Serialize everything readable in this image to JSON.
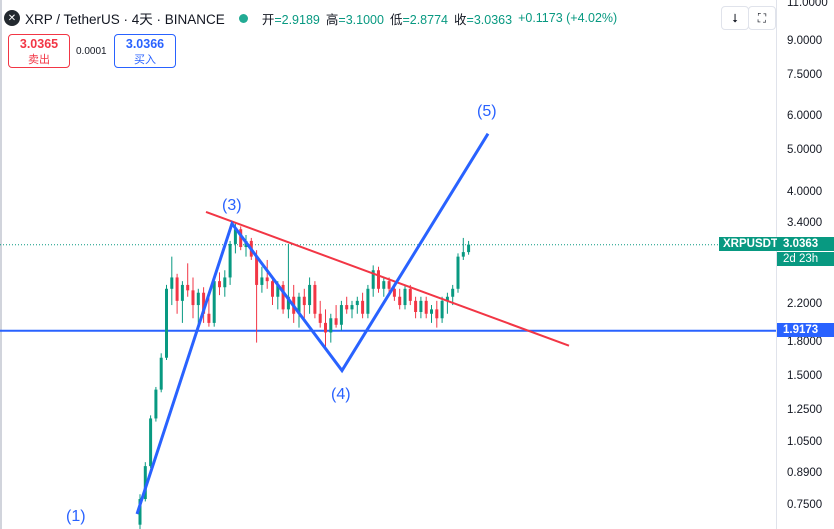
{
  "header": {
    "symbol_icon": "xrp-logo-icon",
    "title": "XRP / TetherUS · 4天 · BINANCE",
    "open_label": "开",
    "open": "=2.9189",
    "high_label": "高",
    "high": "=3.1000",
    "low_label": "低",
    "low": "=2.8774",
    "close_label": "收",
    "close": "=3.0363",
    "change": "+0.1173 (+4.02%)",
    "status_color": "#22ab94"
  },
  "trade": {
    "sell_price": "3.0365",
    "sell_label": "卖出",
    "spread": "0.0001",
    "buy_price": "3.0366",
    "buy_label": "买入"
  },
  "toolbar": {
    "down_icon": "arrow-down-icon",
    "fullscreen_icon": "fullscreen-icon"
  },
  "colors": {
    "up": "#089981",
    "down": "#f23645",
    "wave": "#2962ff",
    "trendline": "#f23645",
    "support": "#2962ff"
  },
  "chart_data": {
    "type": "candlestick",
    "y_scale": "log",
    "ylim": [
      0.72,
      11.0
    ],
    "y_ticks": [
      "11.0000",
      "9.0000",
      "7.5000",
      "6.0000",
      "5.0000",
      "4.0000",
      "3.4000",
      "2.2000",
      "1.8000",
      "1.5000",
      "1.2500",
      "1.0500",
      "0.8900",
      "0.7500"
    ],
    "candles": [
      {
        "o": 0.68,
        "h": 0.8,
        "l": 0.66,
        "c": 0.78
      },
      {
        "o": 0.78,
        "h": 0.95,
        "l": 0.77,
        "c": 0.93
      },
      {
        "o": 0.93,
        "h": 1.22,
        "l": 0.92,
        "c": 1.2
      },
      {
        "o": 1.2,
        "h": 1.42,
        "l": 1.18,
        "c": 1.4
      },
      {
        "o": 1.4,
        "h": 1.7,
        "l": 1.38,
        "c": 1.66
      },
      {
        "o": 1.66,
        "h": 2.45,
        "l": 1.64,
        "c": 2.4
      },
      {
        "o": 2.4,
        "h": 2.85,
        "l": 2.2,
        "c": 2.55
      },
      {
        "o": 2.55,
        "h": 2.6,
        "l": 2.1,
        "c": 2.25
      },
      {
        "o": 2.25,
        "h": 2.5,
        "l": 2.0,
        "c": 2.45
      },
      {
        "o": 2.45,
        "h": 2.75,
        "l": 2.3,
        "c": 2.38
      },
      {
        "o": 2.38,
        "h": 2.55,
        "l": 2.05,
        "c": 2.2
      },
      {
        "o": 2.2,
        "h": 2.4,
        "l": 1.98,
        "c": 2.35
      },
      {
        "o": 2.35,
        "h": 2.42,
        "l": 2.0,
        "c": 2.1
      },
      {
        "o": 2.1,
        "h": 2.3,
        "l": 1.96,
        "c": 2.0
      },
      {
        "o": 2.0,
        "h": 2.55,
        "l": 1.96,
        "c": 2.5
      },
      {
        "o": 2.5,
        "h": 2.62,
        "l": 2.32,
        "c": 2.42
      },
      {
        "o": 2.42,
        "h": 2.65,
        "l": 2.3,
        "c": 2.55
      },
      {
        "o": 2.55,
        "h": 3.1,
        "l": 2.45,
        "c": 3.05
      },
      {
        "o": 3.05,
        "h": 3.4,
        "l": 2.9,
        "c": 3.3
      },
      {
        "o": 3.3,
        "h": 3.35,
        "l": 2.95,
        "c": 3.0
      },
      {
        "o": 3.0,
        "h": 3.2,
        "l": 2.85,
        "c": 3.1
      },
      {
        "o": 3.1,
        "h": 3.15,
        "l": 2.8,
        "c": 2.85
      },
      {
        "o": 2.85,
        "h": 2.95,
        "l": 1.8,
        "c": 2.45
      },
      {
        "o": 2.45,
        "h": 2.7,
        "l": 2.35,
        "c": 2.55
      },
      {
        "o": 2.55,
        "h": 2.8,
        "l": 2.4,
        "c": 2.5
      },
      {
        "o": 2.5,
        "h": 2.55,
        "l": 2.2,
        "c": 2.3
      },
      {
        "o": 2.3,
        "h": 2.5,
        "l": 2.15,
        "c": 2.45
      },
      {
        "o": 2.45,
        "h": 2.5,
        "l": 2.1,
        "c": 2.15
      },
      {
        "o": 2.15,
        "h": 3.05,
        "l": 2.05,
        "c": 2.3
      },
      {
        "o": 2.3,
        "h": 2.45,
        "l": 2.0,
        "c": 2.1
      },
      {
        "o": 2.1,
        "h": 2.35,
        "l": 1.95,
        "c": 2.3
      },
      {
        "o": 2.3,
        "h": 2.4,
        "l": 2.05,
        "c": 2.2
      },
      {
        "o": 2.2,
        "h": 2.55,
        "l": 2.1,
        "c": 2.45
      },
      {
        "o": 2.45,
        "h": 2.5,
        "l": 2.05,
        "c": 2.1
      },
      {
        "o": 2.1,
        "h": 2.25,
        "l": 1.95,
        "c": 2.0
      },
      {
        "o": 2.0,
        "h": 2.15,
        "l": 1.75,
        "c": 1.9
      },
      {
        "o": 1.9,
        "h": 2.1,
        "l": 1.8,
        "c": 2.05
      },
      {
        "o": 2.05,
        "h": 2.2,
        "l": 1.95,
        "c": 1.98
      },
      {
        "o": 1.98,
        "h": 2.25,
        "l": 1.92,
        "c": 2.2
      },
      {
        "o": 2.2,
        "h": 2.3,
        "l": 2.1,
        "c": 2.15
      },
      {
        "o": 2.15,
        "h": 2.25,
        "l": 2.05,
        "c": 2.2
      },
      {
        "o": 2.2,
        "h": 2.3,
        "l": 2.1,
        "c": 2.25
      },
      {
        "o": 2.25,
        "h": 2.35,
        "l": 2.05,
        "c": 2.1
      },
      {
        "o": 2.1,
        "h": 2.45,
        "l": 2.05,
        "c": 2.4
      },
      {
        "o": 2.4,
        "h": 2.72,
        "l": 2.3,
        "c": 2.65
      },
      {
        "o": 2.65,
        "h": 2.7,
        "l": 2.35,
        "c": 2.4
      },
      {
        "o": 2.4,
        "h": 2.55,
        "l": 2.3,
        "c": 2.5
      },
      {
        "o": 2.5,
        "h": 2.55,
        "l": 2.35,
        "c": 2.4
      },
      {
        "o": 2.4,
        "h": 2.45,
        "l": 2.25,
        "c": 2.3
      },
      {
        "o": 2.3,
        "h": 2.4,
        "l": 2.15,
        "c": 2.2
      },
      {
        "o": 2.2,
        "h": 2.45,
        "l": 2.15,
        "c": 2.4
      },
      {
        "o": 2.4,
        "h": 2.45,
        "l": 2.2,
        "c": 2.25
      },
      {
        "o": 2.25,
        "h": 2.3,
        "l": 2.05,
        "c": 2.12
      },
      {
        "o": 2.12,
        "h": 2.3,
        "l": 2.05,
        "c": 2.25
      },
      {
        "o": 2.25,
        "h": 2.3,
        "l": 2.05,
        "c": 2.1
      },
      {
        "o": 2.1,
        "h": 2.2,
        "l": 2.0,
        "c": 2.15
      },
      {
        "o": 2.15,
        "h": 2.25,
        "l": 1.95,
        "c": 2.05
      },
      {
        "o": 2.05,
        "h": 2.3,
        "l": 2.0,
        "c": 2.25
      },
      {
        "o": 2.25,
        "h": 2.35,
        "l": 2.1,
        "c": 2.3
      },
      {
        "o": 2.3,
        "h": 2.45,
        "l": 2.2,
        "c": 2.4
      },
      {
        "o": 2.4,
        "h": 2.9,
        "l": 2.35,
        "c": 2.85
      },
      {
        "o": 2.85,
        "h": 3.15,
        "l": 2.8,
        "c": 2.92
      },
      {
        "o": 2.92,
        "h": 3.1,
        "l": 2.88,
        "c": 3.04
      }
    ],
    "wave_points": [
      {
        "label": "(1)",
        "price": 0.72
      },
      {
        "label": "(3)",
        "price": 3.4
      },
      {
        "label": "(4)",
        "price": 1.55
      },
      {
        "label": "(5)",
        "price": 5.5
      }
    ],
    "trendline": {
      "from_price": 3.62,
      "to_price": 1.77
    },
    "support_level": 1.9173,
    "last_price": 3.0363,
    "price_tag": {
      "symbol": "XRPUSDT",
      "value": "3.0363",
      "countdown": "2d 23h"
    },
    "support_tag": "1.9173"
  }
}
